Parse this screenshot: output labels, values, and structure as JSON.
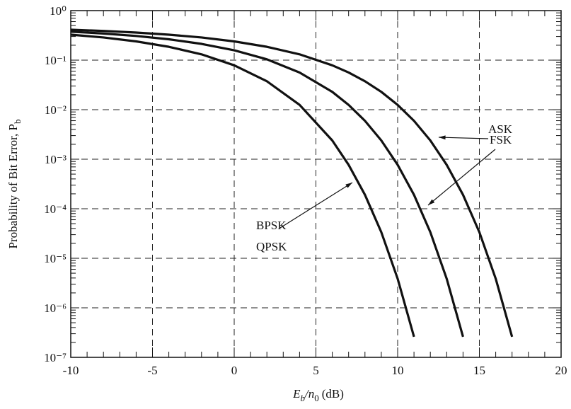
{
  "chart_data": {
    "type": "line",
    "ylabel": [
      "Probability of Bit Error, P",
      "b"
    ],
    "xlabel": [
      "E",
      "b",
      "/n",
      "0",
      "(dB)"
    ],
    "x": [
      -10,
      -8,
      -6,
      -4,
      -2,
      0,
      2,
      4,
      6,
      7,
      8,
      9,
      10,
      11,
      12,
      13,
      14,
      15,
      16,
      17
    ],
    "series": [
      {
        "name": "BPSK",
        "color": "#111111",
        "values": [
          0.327,
          0.287,
          0.239,
          0.186,
          0.131,
          0.0786,
          0.0375,
          0.0125,
          0.00239,
          0.00077,
          0.000191,
          3.36e-05,
          3.87e-06,
          2.6e-07,
          null,
          null,
          null,
          null,
          null,
          null
        ]
      },
      {
        "name": "FSK",
        "color": "#111111",
        "values": [
          0.376,
          0.345,
          0.308,
          0.264,
          0.213,
          0.158,
          0.104,
          0.0563,
          0.0229,
          0.0125,
          0.00595,
          0.00239,
          0.00077,
          0.000191,
          3.36e-05,
          3.87e-06,
          2.6e-07,
          null,
          null,
          null
        ]
      },
      {
        "name": "ASK",
        "color": "#111111",
        "values": [
          0.411,
          0.389,
          0.361,
          0.327,
          0.287,
          0.239,
          0.186,
          0.131,
          0.0786,
          0.0563,
          0.0375,
          0.0229,
          0.0125,
          0.00595,
          0.00239,
          0.00077,
          0.000191,
          3.36e-05,
          3.87e-06,
          2.6e-07
        ]
      }
    ],
    "annotations": [
      "QPSK"
    ],
    "log_y": true,
    "grid": true,
    "xlim": [
      -10,
      20
    ],
    "xticks": [
      -10,
      -5,
      0,
      5,
      10,
      15,
      20
    ],
    "ylim": [
      1e-07,
      1
    ],
    "yticks": [
      {
        "value": 1e-07,
        "label": "10⁻⁷"
      },
      {
        "value": 1e-06,
        "label": "10⁻⁶"
      },
      {
        "value": 1e-05,
        "label": "10⁻⁵"
      },
      {
        "value": 0.0001,
        "label": "10⁻⁴"
      },
      {
        "value": 0.001,
        "label": "10⁻³"
      },
      {
        "value": 0.01,
        "label": "10⁻²"
      },
      {
        "value": 0.1,
        "label": "10⁻¹"
      },
      {
        "value": 1,
        "label": "10⁰"
      }
    ]
  }
}
